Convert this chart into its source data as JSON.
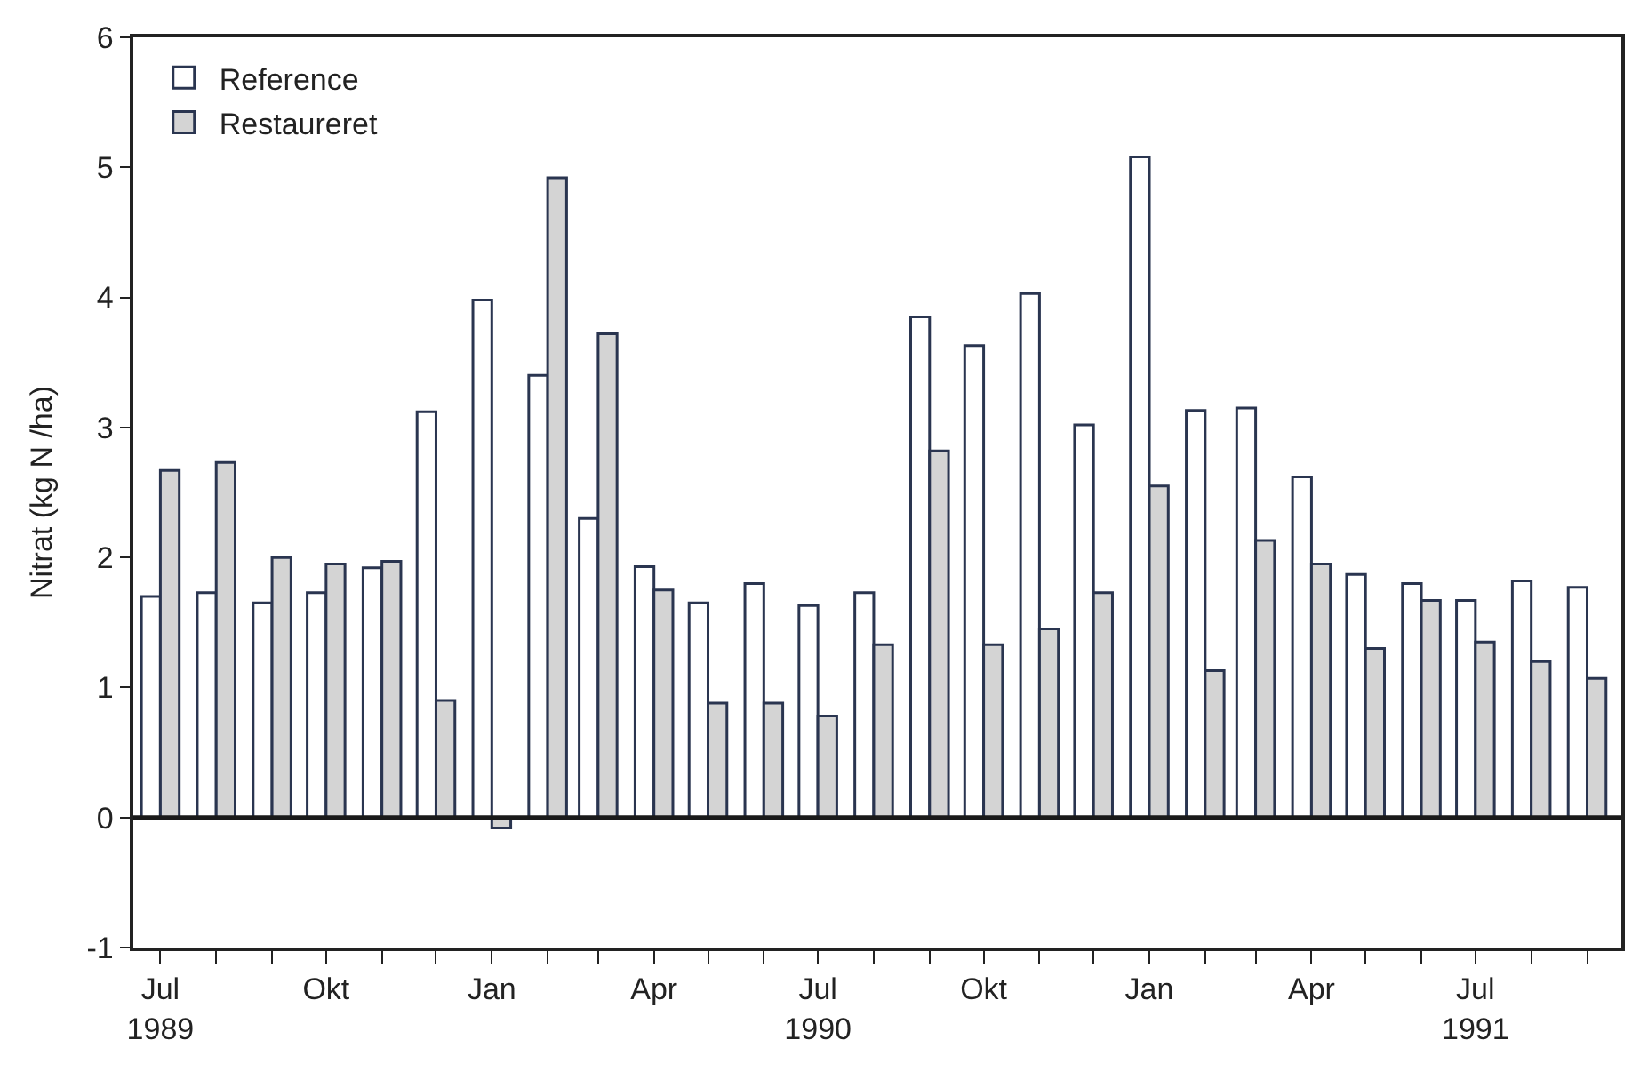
{
  "chart_data": {
    "type": "bar",
    "ylabel": "Nitrat (kg N /ha)",
    "x": [
      "1989-07",
      "1989-08",
      "1989-09",
      "1989-10",
      "1989-11",
      "1989-12",
      "1990-01",
      "1990-02",
      "1990-03",
      "1990-04",
      "1990-05",
      "1990-06",
      "1990-07",
      "1990-08",
      "1990-09",
      "1990-10",
      "1990-11",
      "1990-12",
      "1991-01",
      "1991-02",
      "1991-03",
      "1991-04",
      "1991-05",
      "1991-06",
      "1991-07",
      "1991-08",
      "1991-09"
    ],
    "series": [
      {
        "name": "Reference",
        "color": "#ffffff",
        "values": [
          1.7,
          1.73,
          1.65,
          1.73,
          1.92,
          3.12,
          3.98,
          3.4,
          2.3,
          1.93,
          1.65,
          1.8,
          1.63,
          1.73,
          3.85,
          3.63,
          4.03,
          3.02,
          5.08,
          3.13,
          3.15,
          2.62,
          1.87,
          1.8,
          1.67,
          1.82,
          1.77
        ]
      },
      {
        "name": "Restaureret",
        "color": "#d4d4d4",
        "values": [
          2.67,
          2.73,
          2.0,
          1.95,
          1.97,
          0.9,
          -0.08,
          4.92,
          3.72,
          1.75,
          0.88,
          0.88,
          0.78,
          1.33,
          2.82,
          1.33,
          1.45,
          1.73,
          2.55,
          1.13,
          2.13,
          1.95,
          1.3,
          1.67,
          1.35,
          1.2,
          1.07
        ]
      }
    ],
    "xlim": [
      "1989-06-16",
      "1991-09-20"
    ],
    "xticks": [
      {
        "value": "1989-07",
        "label": "Jul\n1989"
      },
      {
        "value": "1989-08",
        "label": null
      },
      {
        "value": "1989-09",
        "label": null
      },
      {
        "value": "1989-10",
        "label": "Okt"
      },
      {
        "value": "1989-11",
        "label": null
      },
      {
        "value": "1989-12",
        "label": null
      },
      {
        "value": "1990-01",
        "label": "Jan"
      },
      {
        "value": "1990-02",
        "label": null
      },
      {
        "value": "1990-03",
        "label": null
      },
      {
        "value": "1990-04",
        "label": "Apr"
      },
      {
        "value": "1990-05",
        "label": null
      },
      {
        "value": "1990-06",
        "label": null
      },
      {
        "value": "1990-07",
        "label": "Jul\n1990"
      },
      {
        "value": "1990-08",
        "label": null
      },
      {
        "value": "1990-09",
        "label": null
      },
      {
        "value": "1990-10",
        "label": "Okt"
      },
      {
        "value": "1990-11",
        "label": null
      },
      {
        "value": "1990-12",
        "label": null
      },
      {
        "value": "1991-01",
        "label": "Jan"
      },
      {
        "value": "1991-02",
        "label": null
      },
      {
        "value": "1991-03",
        "label": null
      },
      {
        "value": "1991-04",
        "label": "Apr"
      },
      {
        "value": "1991-05",
        "label": null
      },
      {
        "value": "1991-06",
        "label": null
      },
      {
        "value": "1991-07",
        "label": "Jul\n1991"
      },
      {
        "value": "1991-08",
        "label": null
      },
      {
        "value": "1991-09",
        "label": null
      }
    ],
    "ylim": [
      -1,
      6
    ],
    "yticks": [
      -1,
      0,
      1,
      2,
      3,
      4,
      5,
      6
    ],
    "ref_lines": [
      {
        "axis": "y",
        "value": 0,
        "color": "#1a1a1a"
      }
    ],
    "legend": "top left"
  }
}
